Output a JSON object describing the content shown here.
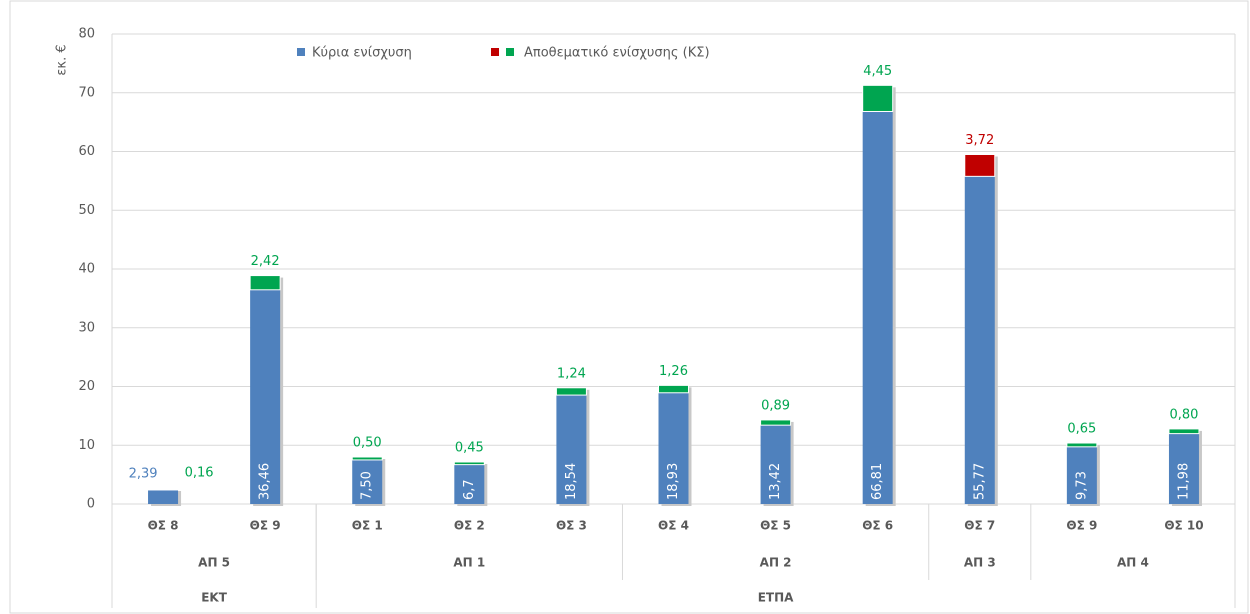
{
  "chart_data": {
    "type": "stacked_bar",
    "y_label": "εκ. €",
    "categories": [
      "ΘΣ 8",
      "ΘΣ 9",
      "ΘΣ 1",
      "ΘΣ 2",
      "ΘΣ 3",
      "ΘΣ 4",
      "ΘΣ 5",
      "ΘΣ 6",
      "ΘΣ 7",
      "ΘΣ 9",
      "ΘΣ 10"
    ],
    "groups": [
      {
        "label": "ΑΠ 5",
        "span": 2
      },
      {
        "label": "ΑΠ 1",
        "span": 3
      },
      {
        "label": "ΑΠ 2",
        "span": 3
      },
      {
        "label": "ΑΠ 3",
        "span": 1
      },
      {
        "label": "ΑΠ 4",
        "span": 2
      }
    ],
    "top_groups": [
      {
        "label": "ΕΚΤ",
        "span": 2
      },
      {
        "label": "ΕΤΠΑ",
        "span": 9
      }
    ],
    "series": [
      {
        "name": "Κύρια ενίσχυση",
        "color": "#4f81bd",
        "values": [
          2.39,
          36.46,
          7.5,
          6.7,
          18.54,
          18.93,
          13.42,
          66.81,
          55.77,
          9.73,
          11.98
        ],
        "value_labels": [
          "2,39",
          "36,46",
          "7,50",
          "6,7",
          "18,54",
          "18,93",
          "13,42",
          "66,81",
          "55,77",
          "9,73",
          "11,98"
        ]
      },
      {
        "name": "Αποθεματικό ενίσχυσης (ΚΣ)",
        "legend_colors": [
          "#c00000",
          "#00a550"
        ],
        "colors": [
          "#00a550",
          "#00a550",
          "#00a550",
          "#00a550",
          "#00a550",
          "#00a550",
          "#00a550",
          "#00a550",
          "#c00000",
          "#00a550",
          "#00a550"
        ],
        "values": [
          0.16,
          2.42,
          0.5,
          0.45,
          1.24,
          1.26,
          0.89,
          4.45,
          3.72,
          0.65,
          0.8
        ],
        "value_labels": [
          "0,16",
          "2,42",
          "0,50",
          "0,45",
          "1,24",
          "1,26",
          "0,89",
          "4,45",
          "3,72",
          "0,65",
          "0,80"
        ]
      }
    ],
    "ylim": [
      0,
      80
    ],
    "yticks": [
      0,
      10,
      20,
      30,
      40,
      50,
      60,
      70,
      80
    ],
    "grid": true
  }
}
